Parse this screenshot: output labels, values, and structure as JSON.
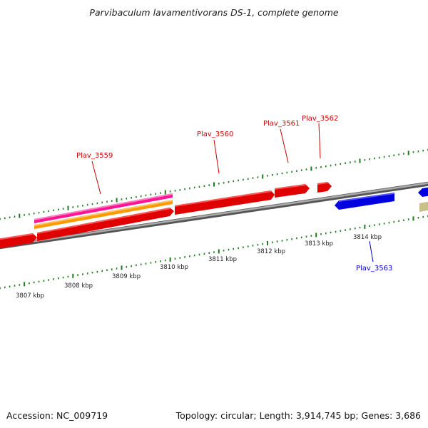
{
  "title": "Parvibaculum lavamentivorans DS-1, complete genome",
  "footer": {
    "accession": "Accession: NC_009719",
    "summary": "Topology: circular; Length: 3,914,745 bp; Genes: 3,686"
  },
  "colors": {
    "forward_gene": "#ff0000",
    "reverse_gene": "#0000ff",
    "pink_feature": "#ff1493",
    "orange_feature": "#ff9900",
    "khaki_feature": "#c8c08a",
    "tick": "#1e7a1e",
    "backbone": "#8a8a8a",
    "label_forward": "#cc0000",
    "label_reverse": "#0000cc"
  },
  "kbp_labels": [
    "3807 kbp",
    "3808 kbp",
    "3809 kbp",
    "3810 kbp",
    "3811 kbp",
    "3812 kbp",
    "3813 kbp",
    "3814 kbp"
  ],
  "gene_labels": [
    {
      "name": "Plav_3559",
      "strand": "forward"
    },
    {
      "name": "Plav_3560",
      "strand": "forward"
    },
    {
      "name": "Plav_3561",
      "strand": "forward"
    },
    {
      "name": "Plav_3562",
      "strand": "forward"
    },
    {
      "name": "Plav_3563",
      "strand": "reverse"
    }
  ]
}
